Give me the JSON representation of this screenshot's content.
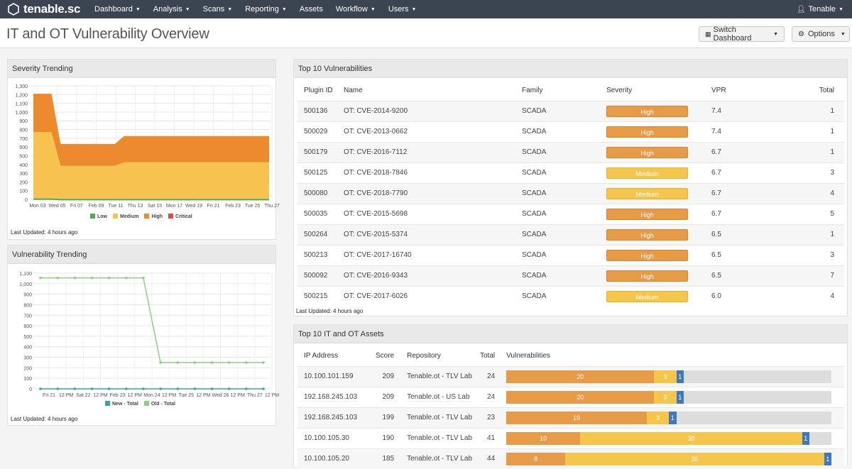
{
  "nav": {
    "brand": "tenable.sc",
    "items": [
      {
        "label": "Dashboard",
        "caret": true
      },
      {
        "label": "Analysis",
        "caret": true
      },
      {
        "label": "Scans",
        "caret": true
      },
      {
        "label": "Reporting",
        "caret": true
      },
      {
        "label": "Assets",
        "caret": false
      },
      {
        "label": "Workflow",
        "caret": true
      },
      {
        "label": "Users",
        "caret": true
      }
    ],
    "user": "Tenable"
  },
  "titlebar": {
    "title": "IT and OT Vulnerability Overview",
    "switch_label": "Switch Dashboard",
    "options_label": "Options"
  },
  "colors": {
    "low": "#4caf50",
    "medium": "#f7c24f",
    "high": "#ee8a2e",
    "critical": "#e04a3f",
    "new_total": "#3aa6a3",
    "old_total": "#8fd080"
  },
  "severity_trending": {
    "title": "Severity Trending",
    "updated": "Last Updated: 4 hours ago",
    "chart_data": {
      "type": "area",
      "y_ticks": [
        "0",
        "100",
        "200",
        "300",
        "400",
        "500",
        "600",
        "700",
        "800",
        "900",
        "1,000",
        "1,100",
        "1,200",
        "1,300"
      ],
      "ylim": [
        0,
        1300
      ],
      "x_labels": [
        "Mon 03",
        "Wed 05",
        "Fri 07",
        "Feb 09",
        "Tue 11",
        "Thu 13",
        "Sat 15",
        "Mon 17",
        "Wed 19",
        "Fri 21",
        "Feb 23",
        "Tue 25",
        "Thu 27"
      ],
      "series": [
        {
          "name": "Low",
          "values": [
            10,
            10,
            10,
            5,
            5,
            5,
            5,
            5,
            5,
            5,
            5,
            5,
            5,
            5,
            5,
            5,
            5,
            5,
            5,
            5,
            5,
            5,
            5,
            5,
            5,
            5,
            5
          ]
        },
        {
          "name": "Medium",
          "values": [
            760,
            760,
            760,
            380,
            380,
            380,
            380,
            380,
            380,
            380,
            420,
            420,
            420,
            420,
            420,
            420,
            420,
            420,
            420,
            420,
            420,
            420,
            420,
            420,
            420,
            420,
            420
          ]
        },
        {
          "name": "High",
          "values": [
            440,
            440,
            440,
            250,
            250,
            250,
            250,
            250,
            250,
            250,
            300,
            300,
            300,
            300,
            300,
            300,
            300,
            300,
            300,
            300,
            300,
            300,
            300,
            300,
            300,
            300,
            300
          ]
        },
        {
          "name": "Critical",
          "values": [
            0,
            0,
            0,
            0,
            0,
            0,
            0,
            0,
            0,
            0,
            0,
            0,
            0,
            0,
            0,
            0,
            0,
            0,
            0,
            0,
            0,
            0,
            0,
            0,
            0,
            0,
            0
          ]
        }
      ],
      "legend": [
        "Low",
        "Medium",
        "High",
        "Critical"
      ]
    }
  },
  "vuln_trending": {
    "title": "Vulnerability Trending",
    "updated": "Last Updated: 4 hours ago",
    "chart_data": {
      "type": "line",
      "y_ticks": [
        "0",
        "100",
        "200",
        "300",
        "400",
        "500",
        "600",
        "700",
        "800",
        "900",
        "1,000",
        "1,100"
      ],
      "ylim": [
        0,
        1100
      ],
      "x_labels": [
        "Fri 21",
        "12 PM",
        "Sat 22",
        "12 PM",
        "Feb 23",
        "12 PM",
        "Mon 24",
        "12 PM",
        "Tue 25",
        "12 PM",
        "Wed 26",
        "12 PM",
        "Thu 27",
        "12 PM"
      ],
      "series": [
        {
          "name": "New - Total",
          "values": [
            0,
            0,
            0,
            0,
            0,
            0,
            0,
            0,
            0,
            0,
            0,
            0,
            0,
            0
          ]
        },
        {
          "name": "Old - Total",
          "values": [
            1055,
            1055,
            1055,
            1055,
            1055,
            1055,
            1055,
            250,
            250,
            250,
            250,
            250,
            250,
            250
          ]
        }
      ],
      "legend": [
        "New - Total",
        "Old - Total"
      ]
    }
  },
  "top_vulns": {
    "title": "Top 10 Vulnerabilities",
    "updated": "Last Updated: 4 hours ago",
    "columns": [
      "Plugin ID",
      "Name",
      "Family",
      "Severity",
      "VPR",
      "Total"
    ],
    "rows": [
      {
        "id": "500136",
        "name": "OT: CVE-2014-9200",
        "family": "SCADA",
        "severity": "High",
        "vpr": "7.4",
        "total": "1"
      },
      {
        "id": "500029",
        "name": "OT: CVE-2013-0662",
        "family": "SCADA",
        "severity": "High",
        "vpr": "7.4",
        "total": "1"
      },
      {
        "id": "500179",
        "name": "OT: CVE-2016-7112",
        "family": "SCADA",
        "severity": "High",
        "vpr": "6.7",
        "total": "1"
      },
      {
        "id": "500125",
        "name": "OT: CVE-2018-7846",
        "family": "SCADA",
        "severity": "Medium",
        "vpr": "6.7",
        "total": "3"
      },
      {
        "id": "500080",
        "name": "OT: CVE-2018-7790",
        "family": "SCADA",
        "severity": "Medium",
        "vpr": "6.7",
        "total": "4"
      },
      {
        "id": "500035",
        "name": "OT: CVE-2015-5698",
        "family": "SCADA",
        "severity": "High",
        "vpr": "6.7",
        "total": "5"
      },
      {
        "id": "500264",
        "name": "OT: CVE-2015-5374",
        "family": "SCADA",
        "severity": "High",
        "vpr": "6.5",
        "total": "1"
      },
      {
        "id": "500213",
        "name": "OT: CVE-2017-16740",
        "family": "SCADA",
        "severity": "High",
        "vpr": "6.5",
        "total": "3"
      },
      {
        "id": "500092",
        "name": "OT: CVE-2016-9343",
        "family": "SCADA",
        "severity": "High",
        "vpr": "6.5",
        "total": "7"
      },
      {
        "id": "500215",
        "name": "OT: CVE-2017-6026",
        "family": "SCADA",
        "severity": "Medium",
        "vpr": "6.0",
        "total": "4"
      }
    ]
  },
  "top_assets": {
    "title": "Top 10 IT and OT Assets",
    "columns": [
      "IP Address",
      "Score",
      "Repository",
      "Total",
      "Vulnerabilities"
    ],
    "rows": [
      {
        "ip": "10.100.101.159",
        "score": "209",
        "repo": "Tenable.ot - TLV Lab",
        "total": "24",
        "high": 20,
        "medium": 3,
        "low": 1
      },
      {
        "ip": "192.168.245.103",
        "score": "209",
        "repo": "Tenable.ot - US Lab",
        "total": "24",
        "high": 20,
        "medium": 3,
        "low": 1
      },
      {
        "ip": "192.168.245.103",
        "score": "199",
        "repo": "Tenable.ot - TLV Lab",
        "total": "23",
        "high": 19,
        "medium": 3,
        "low": 1
      },
      {
        "ip": "10.100.105.30",
        "score": "190",
        "repo": "Tenable.ot - TLV Lab",
        "total": "41",
        "high": 10,
        "medium": 30,
        "low": 1
      },
      {
        "ip": "10.100.105.20",
        "score": "185",
        "repo": "Tenable.ot - TLV Lab",
        "total": "44",
        "high": 8,
        "medium": 35,
        "low": 1
      }
    ]
  }
}
